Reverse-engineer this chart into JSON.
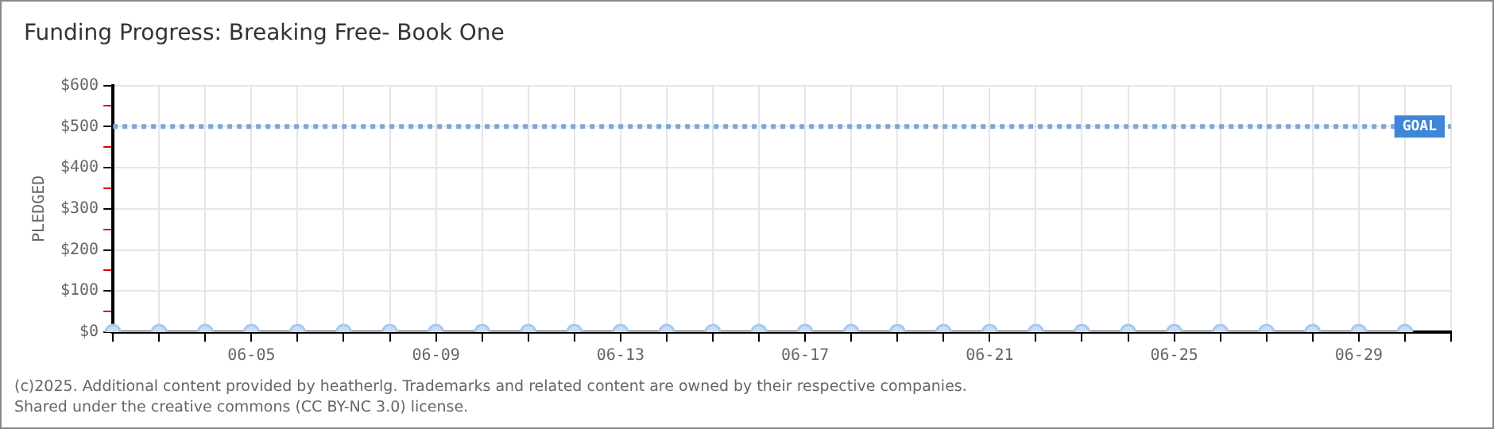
{
  "chart_data": {
    "type": "line",
    "title": "Funding Progress: Breaking Free- Book One",
    "ylabel": "PLEDGED",
    "categories": [
      null,
      null,
      null,
      "06-05",
      null,
      null,
      null,
      "06-09",
      null,
      null,
      null,
      "06-13",
      null,
      null,
      null,
      "06-17",
      null,
      null,
      null,
      "06-21",
      null,
      null,
      null,
      "06-25",
      null,
      null,
      null,
      "06-29",
      null,
      null
    ],
    "series": [
      {
        "color": "#a9c8ec",
        "values": [
          0,
          0,
          0,
          0,
          0,
          0,
          0,
          0,
          0,
          0,
          0,
          0,
          0,
          0,
          0,
          0,
          0,
          0,
          0,
          0,
          0,
          0,
          0,
          0,
          0,
          0,
          0,
          0,
          0,
          null
        ]
      }
    ],
    "ylim": [
      0,
      600
    ],
    "yticks": [
      {
        "value": 0,
        "label": "$0"
      },
      {
        "value": 50,
        "label": null
      },
      {
        "value": 100,
        "label": "$100"
      },
      {
        "value": 150,
        "label": null
      },
      {
        "value": 200,
        "label": "$200"
      },
      {
        "value": 250,
        "label": null
      },
      {
        "value": 300,
        "label": "$300"
      },
      {
        "value": 350,
        "label": null
      },
      {
        "value": 400,
        "label": "$400"
      },
      {
        "value": 450,
        "label": null
      },
      {
        "value": 500,
        "label": "$500"
      },
      {
        "value": 550,
        "label": null
      },
      {
        "value": 600,
        "label": "$600"
      }
    ],
    "ref_lines": [
      {
        "axis": "y",
        "value": 500,
        "label": "GOAL",
        "color": "#7fa6d6",
        "line_style": "dotted"
      }
    ],
    "grid": true,
    "legend": false,
    "marker": "circle",
    "line_style": "solid",
    "annotations": [
      "(c)2025. Additional content provided by heatherlg. Trademarks and related content are owned by their respective companies.",
      "Shared under the creative commons (CC BY-NC 3.0) license."
    ]
  }
}
